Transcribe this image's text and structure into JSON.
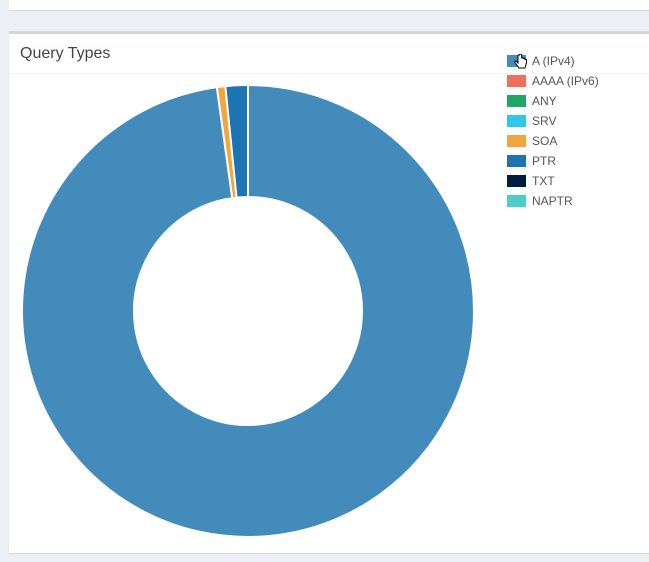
{
  "panel": {
    "title": "Query Types"
  },
  "chart_data": {
    "type": "pie",
    "style": "doughnut",
    "legend_position": "right",
    "series": [
      {
        "name": "A (IPv4)",
        "value": 97.8,
        "color": "#428bba"
      },
      {
        "name": "AAAA (IPv6)",
        "value": 0.0,
        "color": "#ee6f5e"
      },
      {
        "name": "ANY",
        "value": 0.0,
        "color": "#22a565"
      },
      {
        "name": "SRV",
        "value": 0.0,
        "color": "#30c6e9"
      },
      {
        "name": "SOA",
        "value": 0.6,
        "color": "#f2a63b"
      },
      {
        "name": "PTR",
        "value": 1.6,
        "color": "#1c74b3"
      },
      {
        "name": "TXT",
        "value": 0.0,
        "color": "#011f3d"
      },
      {
        "name": "NAPTR",
        "value": 0.0,
        "color": "#4ccdc9"
      }
    ]
  }
}
